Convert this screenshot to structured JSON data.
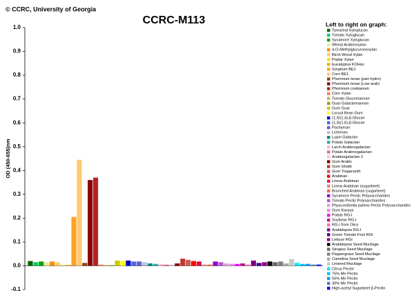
{
  "chart_data": {
    "type": "bar",
    "credit": "© CCRC, University of Georgia",
    "title": "CCRC-M113",
    "ylabel": "OD (450-655)nm",
    "legend_title": "Left to right on graph:",
    "categories": [
      "Tamarind Xyloglucan",
      "Tomato Xyloglucan",
      "Sycamore Xyloglucan",
      "Wheat Arabinoxylan",
      "4-O-Methylglucuronoxylan",
      "Birch Wood Xylan",
      "Poplar Xylan",
      "Eucalyptus KOHss",
      "Sorghum BE1",
      "Corn BE1",
      "Phormium tenax (part hydro)",
      "Phormium tenax (Low arab)",
      "Phormium cookianum",
      "Corn Xylan",
      "Tomato Glucomannan",
      "Guar Galactomannan",
      "Gum Guar",
      "Locust Bean Gum",
      "(1,3)(1,4)-β-Glucan",
      "(1,3)(1,6)-β-Glucan",
      "Pachyman",
      "Lichenan",
      "Lupin Galactan",
      "Potato Galactan",
      "Larch Arabinogalactan",
      "Potato Arabinogalactan",
      "Arabinogalactan 2",
      "Gum Arabic",
      "Gum Ghatti",
      "Gum Tragacanth",
      "Arabinan",
      "Linear Arabinan",
      "Linear Arabinan (sugarbeet)",
      "Branched Arabinan (sugarbeet)",
      "Sycamore Pectic Polysaccharides",
      "Tomato Pectic Polysaccharides",
      "Physcomitrella patens Pectic Polysaccharides",
      "Gum Karaya",
      "Potato RG-I",
      "Soybean RG-I",
      "RG-I from Okra",
      "Arabidopsis RG-I",
      "Green Tomato Fruit RGI",
      "Lettuce RGI",
      "Arabidopsis Seed Mucilage",
      "Sinapus Seed Mucilage",
      "Peppergrass Seed Mucilage",
      "Camelina Seed Mucilage",
      "Linseed Mucilage",
      "Citrus Pectin",
      "75% Me Pectin",
      "55% Me Pectin",
      "30% Me Pectin",
      "High-acetyl Sugarbeet β-Pectin"
    ],
    "colors": [
      "#006400",
      "#00cc66",
      "#00a000",
      "#e8e8a0",
      "#ff8c00",
      "#ffcc66",
      "#ffd700",
      "#ffa500",
      "#ffa020",
      "#ffc870",
      "#8b4513",
      "#8b0000",
      "#b22222",
      "#ff7f50",
      "#bdb76b",
      "#a0a000",
      "#c8c800",
      "#ffff00",
      "#0000cd",
      "#4169e1",
      "#6a5acd",
      "#b0c4de",
      "#008b8b",
      "#20b2aa",
      "#ffb6c1",
      "#db7093",
      "#ffc0cb",
      "#800000",
      "#c0392b",
      "#cd5c5c",
      "#ff0000",
      "#dc143c",
      "#f08080",
      "#ff6347",
      "#9400d3",
      "#ba55d3",
      "#dda0dd",
      "#ee82ee",
      "#ff00ff",
      "#c71585",
      "#ff69b4",
      "#800080",
      "#4b0082",
      "#8b008b",
      "#000000",
      "#696969",
      "#808080",
      "#a9a9a9",
      "#c8c8c8",
      "#00e5ee",
      "#00bfff",
      "#1e90ff",
      "#4682b4",
      "#0000ff"
    ],
    "values": [
      0.02,
      0.015,
      0.018,
      0.015,
      0.018,
      0.015,
      0.003,
      0.003,
      0.205,
      0.445,
      0.012,
      0.36,
      0.37,
      0.005,
      0.003,
      0.003,
      0.022,
      0.02,
      0.022,
      0.018,
      0.018,
      0.015,
      0.01,
      0.008,
      0.008,
      0.005,
      0.005,
      0.01,
      0.03,
      0.025,
      0.02,
      0.018,
      0.005,
      0.005,
      0.018,
      0.015,
      0.01,
      0.008,
      0.008,
      0.01,
      0.005,
      0.022,
      0.012,
      0.015,
      0.018,
      0.015,
      0.018,
      0.01,
      0.028,
      0.012,
      0.008,
      0.008,
      0.005,
      0.005
    ],
    "ylim": [
      -0.1,
      1.0
    ],
    "yticks": [
      {
        "value": 1.0,
        "label": "1.0"
      },
      0.9,
      0.8,
      0.7,
      0.6,
      0.5,
      0.4,
      0.3,
      0.2,
      0.1,
      {
        "value": 0.0,
        "label": "0.0"
      },
      -0.1
    ]
  }
}
